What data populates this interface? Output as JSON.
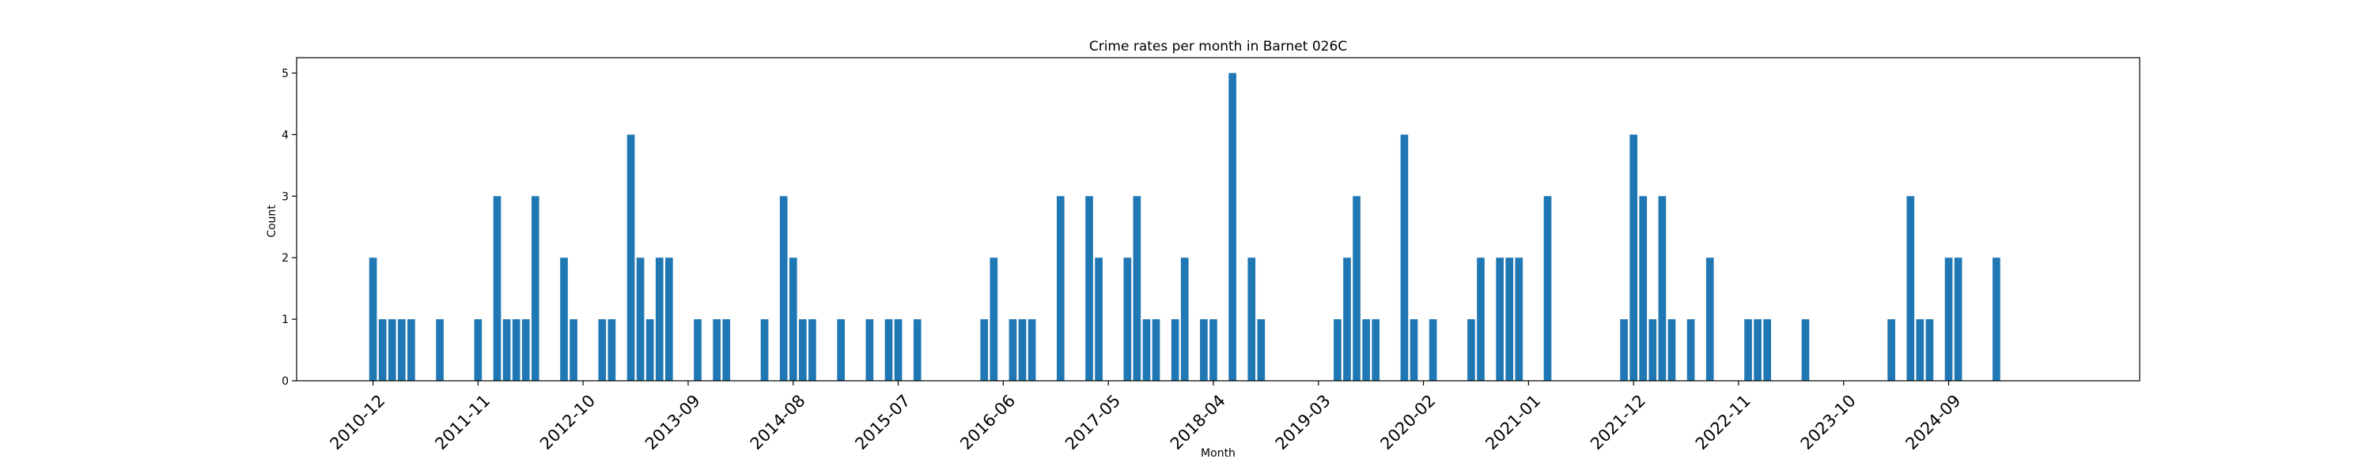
{
  "chart_data": {
    "type": "bar",
    "title": "Crime rates per month in Barnet 026C",
    "xlabel": "Month",
    "ylabel": "Count",
    "ylim": [
      0,
      5.25
    ],
    "yticks": [
      0,
      1,
      2,
      3,
      4,
      5
    ],
    "grid": false,
    "color": "#1f77b4",
    "x_range": [
      "2010-04",
      "2026-05"
    ],
    "xticks": [
      "2010-12",
      "2011-11",
      "2012-10",
      "2013-09",
      "2014-08",
      "2015-07",
      "2016-06",
      "2017-05",
      "2018-04",
      "2019-03",
      "2020-02",
      "2021-01",
      "2021-12",
      "2022-11",
      "2023-10",
      "2024-09"
    ],
    "categories": [
      "2010-12",
      "2011-01",
      "2011-02",
      "2011-03",
      "2011-04",
      "2011-07",
      "2011-11",
      "2012-01",
      "2012-02",
      "2012-03",
      "2012-04",
      "2012-05",
      "2012-08",
      "2012-09",
      "2012-12",
      "2013-01",
      "2013-03",
      "2013-04",
      "2013-05",
      "2013-06",
      "2013-07",
      "2013-10",
      "2013-12",
      "2014-01",
      "2014-05",
      "2014-07",
      "2014-08",
      "2014-09",
      "2014-10",
      "2015-01",
      "2015-04",
      "2015-06",
      "2015-07",
      "2015-09",
      "2016-04",
      "2016-05",
      "2016-07",
      "2016-08",
      "2016-09",
      "2017-00",
      "2017-03",
      "2017-04",
      "2017-07",
      "2017-08",
      "2017-09",
      "2017-10",
      "2018-00",
      "2018-01",
      "2018-03",
      "2018-04",
      "2018-06",
      "2018-08",
      "2018-09",
      "2019-05",
      "2019-06",
      "2019-07",
      "2019-08",
      "2019-09",
      "2020-00",
      "2020-01",
      "2020-03",
      "2020-07",
      "2020-08",
      "2020-10",
      "2020-11",
      "2021-00",
      "2021-03",
      "2021-11",
      "2021-12",
      "2022-01",
      "2022-02",
      "2022-03",
      "2022-04",
      "2022-06",
      "2022-08",
      "2022-12",
      "2023-01",
      "2023-02",
      "2023-06",
      "2024-03",
      "2024-05",
      "2024-06",
      "2024-07",
      "2024-09",
      "2024-10",
      "2025-02"
    ],
    "values": [
      2,
      1,
      1,
      1,
      1,
      1,
      1,
      3,
      1,
      1,
      1,
      3,
      2,
      1,
      1,
      1,
      4,
      2,
      1,
      2,
      2,
      1,
      1,
      1,
      1,
      3,
      2,
      1,
      1,
      1,
      1,
      1,
      1,
      1,
      1,
      2,
      1,
      1,
      1,
      3,
      3,
      2,
      2,
      3,
      1,
      1,
      1,
      2,
      1,
      1,
      5,
      2,
      1,
      1,
      2,
      3,
      1,
      1,
      4,
      1,
      1,
      1,
      2,
      2,
      2,
      2,
      3,
      1,
      4,
      3,
      1,
      3,
      1,
      1,
      2,
      1,
      1,
      1,
      1,
      1,
      3,
      1,
      1,
      2,
      2,
      2
    ]
  }
}
